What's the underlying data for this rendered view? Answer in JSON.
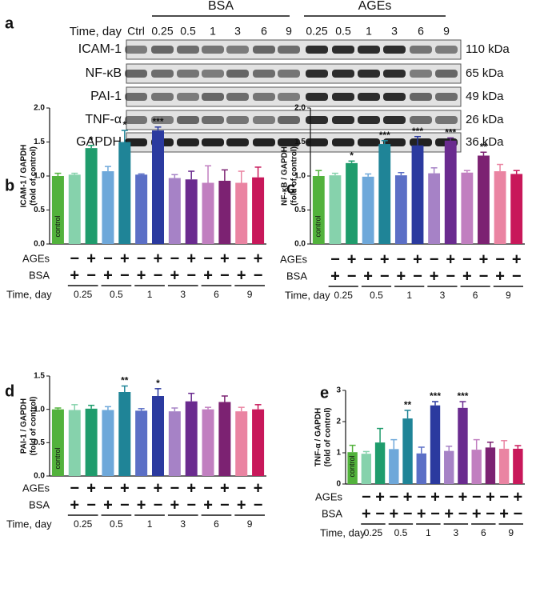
{
  "blot": {
    "panel": "a",
    "groups": [
      "BSA",
      "AGEs"
    ],
    "time_label": "Time, day",
    "lanes": [
      "Ctrl",
      "0.25",
      "0.5",
      "1",
      "3",
      "6",
      "9",
      "0.25",
      "0.5",
      "1",
      "3",
      "6",
      "9"
    ],
    "rows": [
      {
        "name": "ICAM-1",
        "kda": "110 kDa"
      },
      {
        "name": "NF-κB",
        "kda": "65 kDa"
      },
      {
        "name": "PAI-1",
        "kda": "49 kDa"
      },
      {
        "name": "TNF-α",
        "kda": "26 kDa"
      },
      {
        "name": "GAPDH",
        "kda": "36 kDa"
      }
    ]
  },
  "chart_data": [
    {
      "type": "bar",
      "panel": "b",
      "ylabel": "ICAM-1 / GAPDH",
      "ylabel2": "(fold of control)",
      "bar_label": "control",
      "ylim": [
        0,
        2
      ],
      "yticks": [
        {
          "value": 0,
          "label": "0.0"
        },
        0.5,
        {
          "value": 1,
          "label": "1.0"
        },
        1.5,
        {
          "value": 2,
          "label": "2.0"
        }
      ],
      "values": [
        1.0,
        1.02,
        1.41,
        1.07,
        1.5,
        1.02,
        1.67,
        0.97,
        0.95,
        0.9,
        0.93,
        0.9,
        0.98
      ],
      "errors": [
        0.04,
        0.02,
        0.04,
        0.07,
        0.17,
        0.01,
        0.05,
        0.05,
        0.12,
        0.25,
        0.16,
        0.17,
        0.15
      ],
      "significance": [
        null,
        null,
        "*",
        null,
        "*",
        null,
        "***",
        null,
        null,
        null,
        null,
        null,
        null
      ],
      "colors": [
        "#52b23c",
        "#86d2ac",
        "#1f9c6c",
        "#6ea8da",
        "#1f8497",
        "#5b6fc6",
        "#2b3a9f",
        "#a682c6",
        "#6a2b8f",
        "#c17fc0",
        "#7c2272",
        "#ea84a2",
        "#c8185a"
      ],
      "row_labels": [
        "AGEs",
        "BSA"
      ],
      "time_label": "Time, day",
      "ages_signs": [
        null,
        "−",
        "+",
        "−",
        "+",
        "−",
        "+",
        "−",
        "+",
        "−",
        "+",
        "−",
        "+"
      ],
      "bsa_signs": [
        null,
        "+",
        "−",
        "+",
        "−",
        "+",
        "−",
        "+",
        "−",
        "+",
        "−",
        "+",
        "−"
      ],
      "time_groups": [
        "0.25",
        "0.5",
        "1",
        "3",
        "6",
        "9"
      ]
    },
    {
      "type": "bar",
      "panel": "c",
      "ylabel": "NF-κB / GAPDH",
      "ylabel2": "(fold of control)",
      "bar_label": "control",
      "ylim": [
        0,
        2
      ],
      "yticks": [
        {
          "value": 0,
          "label": "0.0"
        },
        0.5,
        {
          "value": 1,
          "label": "1.0"
        },
        1.5,
        {
          "value": 2,
          "label": "2.0"
        }
      ],
      "values": [
        1.0,
        1.01,
        1.19,
        0.99,
        1.47,
        1.01,
        1.45,
        1.04,
        1.52,
        1.05,
        1.3,
        1.07,
        1.03
      ],
      "errors": [
        0.08,
        0.03,
        0.03,
        0.04,
        0.05,
        0.04,
        0.13,
        0.08,
        0.04,
        0.03,
        0.05,
        0.1,
        0.05
      ],
      "significance": [
        null,
        null,
        "*",
        null,
        "***",
        null,
        "***",
        null,
        "***",
        null,
        "**",
        null,
        null
      ],
      "colors": [
        "#52b23c",
        "#86d2ac",
        "#1f9c6c",
        "#6ea8da",
        "#1f8497",
        "#5b6fc6",
        "#2b3a9f",
        "#a682c6",
        "#6a2b8f",
        "#c17fc0",
        "#7c2272",
        "#ea84a2",
        "#c8185a"
      ],
      "row_labels": [
        "AGEs",
        "BSA"
      ],
      "time_label": "Time, day",
      "ages_signs": [
        null,
        "−",
        "+",
        "−",
        "+",
        "−",
        "+",
        "−",
        "+",
        "−",
        "+",
        "−",
        "+"
      ],
      "bsa_signs": [
        null,
        "+",
        "−",
        "+",
        "−",
        "+",
        "−",
        "+",
        "−",
        "+",
        "−",
        "+",
        "−"
      ],
      "time_groups": [
        "0.25",
        "0.5",
        "1",
        "3",
        "6",
        "9"
      ]
    },
    {
      "type": "bar",
      "panel": "d",
      "ylabel": "PAI-1 / GAPDH",
      "ylabel2": "(fold of control)",
      "bar_label": "control",
      "ylim": [
        0,
        1.5
      ],
      "yticks": [
        {
          "value": 0,
          "label": "0.0"
        },
        0.5,
        {
          "value": 1,
          "label": "1.0"
        },
        1.5
      ],
      "values": [
        1.0,
        0.99,
        1.01,
        0.99,
        1.26,
        0.98,
        1.2,
        0.97,
        1.12,
        1.0,
        1.11,
        0.97,
        1.0
      ],
      "errors": [
        0.02,
        0.08,
        0.05,
        0.05,
        0.09,
        0.03,
        0.11,
        0.05,
        0.12,
        0.03,
        0.09,
        0.06,
        0.07
      ],
      "significance": [
        null,
        null,
        null,
        null,
        "**",
        null,
        "*",
        null,
        null,
        null,
        null,
        null,
        null
      ],
      "colors": [
        "#52b23c",
        "#86d2ac",
        "#1f9c6c",
        "#6ea8da",
        "#1f8497",
        "#5b6fc6",
        "#2b3a9f",
        "#a682c6",
        "#6a2b8f",
        "#c17fc0",
        "#7c2272",
        "#ea84a2",
        "#c8185a"
      ],
      "row_labels": [
        "AGEs",
        "BSA"
      ],
      "time_label": "Time, day",
      "ages_signs": [
        null,
        "−",
        "+",
        "−",
        "+",
        "−",
        "+",
        "−",
        "+",
        "−",
        "+",
        "−",
        "+"
      ],
      "bsa_signs": [
        null,
        "+",
        "−",
        "+",
        "−",
        "+",
        "−",
        "+",
        "−",
        "+",
        "−",
        "+",
        "−"
      ],
      "time_groups": [
        "0.25",
        "0.5",
        "1",
        "3",
        "6",
        "9"
      ]
    },
    {
      "type": "bar",
      "panel": "e",
      "ylabel": "TNF-α / GAPDH",
      "ylabel2": "(fold of control)",
      "bar_label": "control",
      "ylim": [
        0,
        3
      ],
      "yticks": [
        0,
        1,
        2,
        3
      ],
      "values": [
        1.02,
        0.97,
        1.33,
        1.12,
        2.1,
        0.98,
        2.52,
        1.06,
        2.44,
        1.1,
        1.17,
        1.13,
        1.13
      ],
      "errors": [
        0.22,
        0.07,
        0.45,
        0.3,
        0.26,
        0.2,
        0.12,
        0.15,
        0.2,
        0.32,
        0.17,
        0.26,
        0.1
      ],
      "significance": [
        null,
        null,
        null,
        null,
        "**",
        null,
        "***",
        null,
        "***",
        null,
        null,
        null,
        null
      ],
      "colors": [
        "#52b23c",
        "#86d2ac",
        "#1f9c6c",
        "#6ea8da",
        "#1f8497",
        "#5b6fc6",
        "#2b3a9f",
        "#a682c6",
        "#6a2b8f",
        "#c17fc0",
        "#7c2272",
        "#ea84a2",
        "#c8185a"
      ],
      "row_labels": [
        "AGEs",
        "BSA"
      ],
      "time_label": "Time, day",
      "ages_signs": [
        null,
        "−",
        "+",
        "−",
        "+",
        "−",
        "+",
        "−",
        "+",
        "−",
        "+",
        "−",
        "+"
      ],
      "bsa_signs": [
        null,
        "+",
        "−",
        "+",
        "−",
        "+",
        "−",
        "+",
        "−",
        "+",
        "−",
        "+",
        "−"
      ],
      "time_groups": [
        "0.25",
        "0.5",
        "1",
        "3",
        "6",
        "9"
      ]
    }
  ]
}
